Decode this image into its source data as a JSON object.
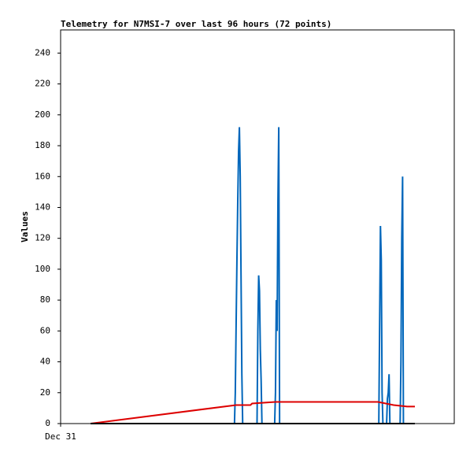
{
  "chart_data": {
    "type": "line",
    "title": "Telemetry for N7MSI-7 over last 96 hours (72 points)",
    "y_label": "Values",
    "xlim": [
      0,
      96
    ],
    "xticks": [
      {
        "value": 0,
        "label": "Dec 31"
      }
    ],
    "ylim": [
      0,
      255
    ],
    "yticks": [
      0,
      20,
      40,
      60,
      80,
      100,
      120,
      140,
      160,
      180,
      200,
      220,
      240
    ],
    "grid": false,
    "series": [
      {
        "color": "#0066bb",
        "x": [
          7.3,
          42.4,
          42.6,
          42.8,
          43.0,
          43.2,
          43.4,
          43.6,
          43.8,
          44.0,
          44.2,
          44.4,
          47.9,
          48.1,
          48.3,
          48.5,
          48.7,
          48.9,
          49.1,
          52.2,
          52.4,
          52.6,
          52.8,
          53.0,
          53.2,
          53.4,
          77.6,
          77.8,
          78.0,
          78.2,
          78.4,
          78.6,
          79.5,
          79.7,
          79.9,
          80.1,
          80.3,
          82.8,
          83.0,
          83.2,
          83.4,
          83.6,
          86.4
        ],
        "values": [
          0,
          0,
          20,
          64,
          106,
          144,
          176,
          192,
          160,
          96,
          32,
          0,
          0,
          60,
          96,
          86,
          48,
          28,
          0,
          0,
          20,
          80,
          60,
          144,
          192,
          0,
          0,
          64,
          128,
          106,
          20,
          0,
          0,
          16,
          20,
          32,
          0,
          0,
          40,
          120,
          160,
          0,
          0
        ]
      },
      {
        "color": "#dd0000",
        "x": [
          7.3,
          42.8,
          46.3,
          46.7,
          52.4,
          77.4,
          81.2,
          84.5,
          86.4
        ],
        "values": [
          0,
          12,
          12,
          13,
          14,
          14,
          12,
          11,
          11
        ]
      },
      {
        "color": "#000000",
        "x": [
          7.3,
          86.4
        ],
        "values": [
          0,
          0
        ]
      }
    ]
  }
}
